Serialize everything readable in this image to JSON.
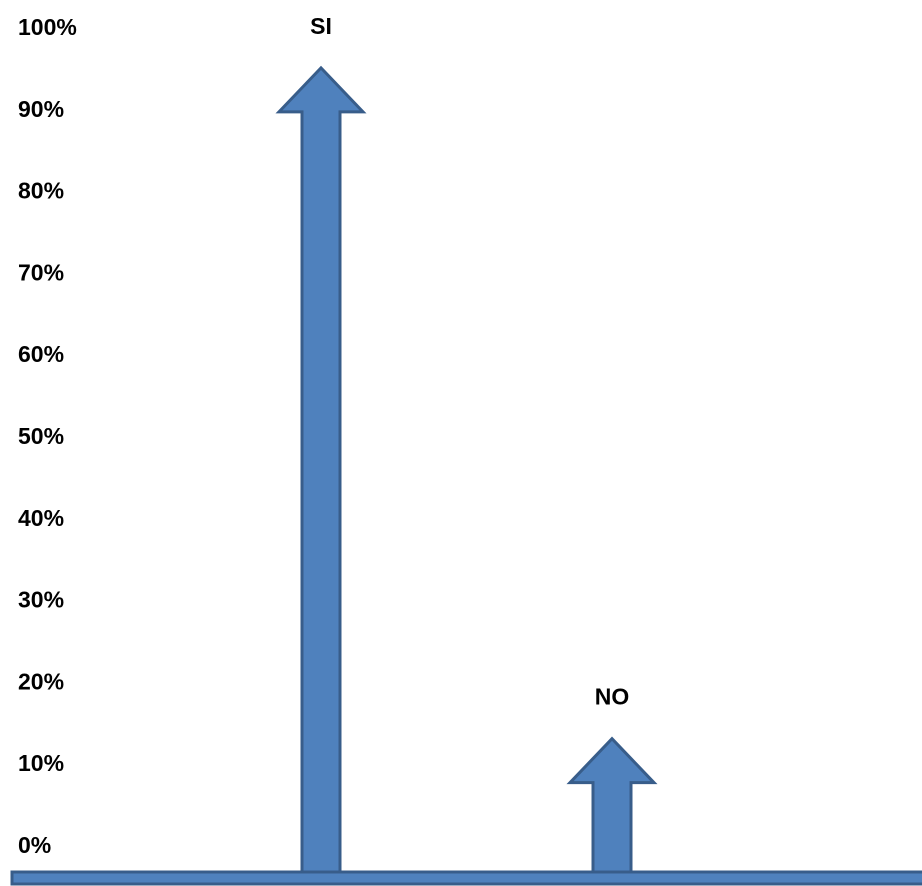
{
  "chart_data": {
    "type": "bar",
    "categories": [
      "SI",
      "NO"
    ],
    "values": [
      95,
      13
    ],
    "yticks": [
      "0%",
      "10%",
      "20%",
      "30%",
      "40%",
      "50%",
      "60%",
      "70%",
      "80%",
      "90%",
      "100%"
    ],
    "ylim": [
      0,
      100
    ],
    "title": "",
    "xlabel": "",
    "ylabel": "",
    "grid": false,
    "mark_shape": "arrow",
    "colors": {
      "fill": "#4F81BD",
      "stroke": "#385D8A"
    }
  }
}
